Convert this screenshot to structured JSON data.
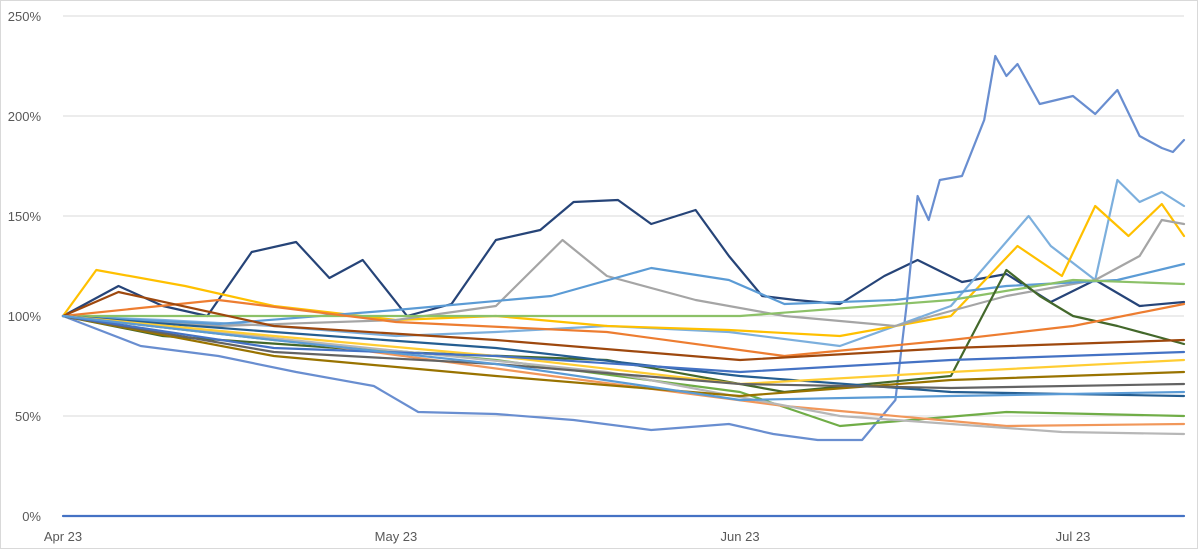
{
  "chart_data": {
    "type": "line",
    "title": "",
    "xlabel": "",
    "ylabel": "",
    "x_tick_labels": [
      "Apr 23",
      "May 23",
      "Jun 23",
      "Jul 23"
    ],
    "x_ticks": [
      "2023-04-01",
      "2023-05-01",
      "2023-06-01",
      "2023-07-01"
    ],
    "x_range": [
      "2023-04-01",
      "2023-07-11"
    ],
    "y_tick_labels": [
      "0%",
      "50%",
      "100%",
      "150%",
      "200%",
      "250%"
    ],
    "y_ticks": [
      0,
      50,
      100,
      150,
      200,
      250
    ],
    "ylim": [
      0,
      250
    ],
    "y_unit": "%",
    "grid": "horizontal",
    "legend": "none",
    "colors": [
      "#4472c4",
      "#ed7d31",
      "#a5a5a5",
      "#ffc000",
      "#5b9bd5",
      "#70ad47",
      "#264478",
      "#9e480e",
      "#636363",
      "#997300",
      "#255e91",
      "#43682b",
      "#698ed0",
      "#f1975a",
      "#b7b7b7",
      "#ffcd33",
      "#7cafdd",
      "#8cc168"
    ],
    "series": [
      {
        "color": "#4472c4",
        "values": [
          {
            "x": "2023-04-01",
            "y": 0
          },
          {
            "x": "2023-07-11",
            "y": 0
          }
        ]
      },
      {
        "color": "#264478",
        "values": [
          {
            "x": "2023-04-01",
            "y": 100
          },
          {
            "x": "2023-04-06",
            "y": 115
          },
          {
            "x": "2023-04-10",
            "y": 105
          },
          {
            "x": "2023-04-14",
            "y": 100
          },
          {
            "x": "2023-04-18",
            "y": 132
          },
          {
            "x": "2023-04-22",
            "y": 137
          },
          {
            "x": "2023-04-25",
            "y": 119
          },
          {
            "x": "2023-04-28",
            "y": 128
          },
          {
            "x": "2023-05-02",
            "y": 100
          },
          {
            "x": "2023-05-06",
            "y": 106
          },
          {
            "x": "2023-05-10",
            "y": 138
          },
          {
            "x": "2023-05-14",
            "y": 143
          },
          {
            "x": "2023-05-17",
            "y": 157
          },
          {
            "x": "2023-05-21",
            "y": 158
          },
          {
            "x": "2023-05-24",
            "y": 146
          },
          {
            "x": "2023-05-28",
            "y": 153
          },
          {
            "x": "2023-05-31",
            "y": 130
          },
          {
            "x": "2023-06-03",
            "y": 110
          },
          {
            "x": "2023-06-06",
            "y": 108
          },
          {
            "x": "2023-06-10",
            "y": 106
          },
          {
            "x": "2023-06-14",
            "y": 120
          },
          {
            "x": "2023-06-17",
            "y": 128
          },
          {
            "x": "2023-06-21",
            "y": 117
          },
          {
            "x": "2023-06-25",
            "y": 121
          },
          {
            "x": "2023-06-29",
            "y": 107
          },
          {
            "x": "2023-07-03",
            "y": 118
          },
          {
            "x": "2023-07-07",
            "y": 105
          },
          {
            "x": "2023-07-11",
            "y": 107
          }
        ]
      },
      {
        "color": "#698ed0",
        "values": [
          {
            "x": "2023-04-01",
            "y": 100
          },
          {
            "x": "2023-04-08",
            "y": 85
          },
          {
            "x": "2023-04-15",
            "y": 80
          },
          {
            "x": "2023-04-22",
            "y": 72
          },
          {
            "x": "2023-04-29",
            "y": 65
          },
          {
            "x": "2023-05-03",
            "y": 52
          },
          {
            "x": "2023-05-10",
            "y": 51
          },
          {
            "x": "2023-05-17",
            "y": 48
          },
          {
            "x": "2023-05-24",
            "y": 43
          },
          {
            "x": "2023-05-31",
            "y": 46
          },
          {
            "x": "2023-06-04",
            "y": 41
          },
          {
            "x": "2023-06-08",
            "y": 38
          },
          {
            "x": "2023-06-12",
            "y": 38
          },
          {
            "x": "2023-06-15",
            "y": 58
          },
          {
            "x": "2023-06-16",
            "y": 105
          },
          {
            "x": "2023-06-17",
            "y": 160
          },
          {
            "x": "2023-06-18",
            "y": 148
          },
          {
            "x": "2023-06-19",
            "y": 168
          },
          {
            "x": "2023-06-21",
            "y": 170
          },
          {
            "x": "2023-06-23",
            "y": 198
          },
          {
            "x": "2023-06-24",
            "y": 230
          },
          {
            "x": "2023-06-25",
            "y": 220
          },
          {
            "x": "2023-06-26",
            "y": 226
          },
          {
            "x": "2023-06-28",
            "y": 206
          },
          {
            "x": "2023-07-01",
            "y": 210
          },
          {
            "x": "2023-07-03",
            "y": 201
          },
          {
            "x": "2023-07-05",
            "y": 213
          },
          {
            "x": "2023-07-07",
            "y": 190
          },
          {
            "x": "2023-07-09",
            "y": 184
          },
          {
            "x": "2023-07-10",
            "y": 182
          },
          {
            "x": "2023-07-11",
            "y": 188
          }
        ]
      },
      {
        "color": "#7cafdd",
        "values": [
          {
            "x": "2023-04-01",
            "y": 100
          },
          {
            "x": "2023-04-10",
            "y": 98
          },
          {
            "x": "2023-04-20",
            "y": 95
          },
          {
            "x": "2023-05-01",
            "y": 90
          },
          {
            "x": "2023-05-10",
            "y": 92
          },
          {
            "x": "2023-05-20",
            "y": 95
          },
          {
            "x": "2023-05-31",
            "y": 92
          },
          {
            "x": "2023-06-10",
            "y": 85
          },
          {
            "x": "2023-06-20",
            "y": 105
          },
          {
            "x": "2023-06-27",
            "y": 150
          },
          {
            "x": "2023-06-29",
            "y": 135
          },
          {
            "x": "2023-07-03",
            "y": 118
          },
          {
            "x": "2023-07-05",
            "y": 168
          },
          {
            "x": "2023-07-07",
            "y": 157
          },
          {
            "x": "2023-07-09",
            "y": 162
          },
          {
            "x": "2023-07-11",
            "y": 155
          }
        ]
      },
      {
        "color": "#ffc000",
        "values": [
          {
            "x": "2023-04-01",
            "y": 100
          },
          {
            "x": "2023-04-04",
            "y": 123
          },
          {
            "x": "2023-04-12",
            "y": 115
          },
          {
            "x": "2023-04-20",
            "y": 105
          },
          {
            "x": "2023-05-01",
            "y": 98
          },
          {
            "x": "2023-05-10",
            "y": 100
          },
          {
            "x": "2023-05-20",
            "y": 95
          },
          {
            "x": "2023-05-31",
            "y": 93
          },
          {
            "x": "2023-06-10",
            "y": 90
          },
          {
            "x": "2023-06-20",
            "y": 100
          },
          {
            "x": "2023-06-26",
            "y": 135
          },
          {
            "x": "2023-06-30",
            "y": 120
          },
          {
            "x": "2023-07-03",
            "y": 155
          },
          {
            "x": "2023-07-06",
            "y": 140
          },
          {
            "x": "2023-07-09",
            "y": 156
          },
          {
            "x": "2023-07-11",
            "y": 140
          }
        ]
      },
      {
        "color": "#a5a5a5",
        "values": [
          {
            "x": "2023-04-01",
            "y": 100
          },
          {
            "x": "2023-04-15",
            "y": 95
          },
          {
            "x": "2023-05-01",
            "y": 98
          },
          {
            "x": "2023-05-10",
            "y": 105
          },
          {
            "x": "2023-05-16",
            "y": 138
          },
          {
            "x": "2023-05-20",
            "y": 120
          },
          {
            "x": "2023-05-28",
            "y": 108
          },
          {
            "x": "2023-06-05",
            "y": 100
          },
          {
            "x": "2023-06-15",
            "y": 95
          },
          {
            "x": "2023-06-25",
            "y": 110
          },
          {
            "x": "2023-07-03",
            "y": 118
          },
          {
            "x": "2023-07-07",
            "y": 130
          },
          {
            "x": "2023-07-09",
            "y": 148
          },
          {
            "x": "2023-07-11",
            "y": 146
          }
        ]
      },
      {
        "color": "#5b9bd5",
        "values": [
          {
            "x": "2023-04-01",
            "y": 100
          },
          {
            "x": "2023-04-15",
            "y": 96
          },
          {
            "x": "2023-05-01",
            "y": 103
          },
          {
            "x": "2023-05-15",
            "y": 110
          },
          {
            "x": "2023-05-24",
            "y": 124
          },
          {
            "x": "2023-05-31",
            "y": 118
          },
          {
            "x": "2023-06-05",
            "y": 106
          },
          {
            "x": "2023-06-15",
            "y": 108
          },
          {
            "x": "2023-06-25",
            "y": 115
          },
          {
            "x": "2023-07-05",
            "y": 118
          },
          {
            "x": "2023-07-11",
            "y": 126
          }
        ]
      },
      {
        "color": "#8cc168",
        "values": [
          {
            "x": "2023-04-01",
            "y": 100
          },
          {
            "x": "2023-05-01",
            "y": 100
          },
          {
            "x": "2023-06-01",
            "y": 100
          },
          {
            "x": "2023-06-20",
            "y": 108
          },
          {
            "x": "2023-07-01",
            "y": 118
          },
          {
            "x": "2023-07-11",
            "y": 116
          }
        ]
      },
      {
        "color": "#43682b",
        "values": [
          {
            "x": "2023-04-01",
            "y": 100
          },
          {
            "x": "2023-04-10",
            "y": 90
          },
          {
            "x": "2023-05-01",
            "y": 82
          },
          {
            "x": "2023-05-20",
            "y": 78
          },
          {
            "x": "2023-06-05",
            "y": 62
          },
          {
            "x": "2023-06-20",
            "y": 70
          },
          {
            "x": "2023-06-25",
            "y": 123
          },
          {
            "x": "2023-06-28",
            "y": 110
          },
          {
            "x": "2023-07-01",
            "y": 100
          },
          {
            "x": "2023-07-05",
            "y": 95
          },
          {
            "x": "2023-07-11",
            "y": 86
          }
        ]
      },
      {
        "color": "#ed7d31",
        "values": [
          {
            "x": "2023-04-01",
            "y": 100
          },
          {
            "x": "2023-04-15",
            "y": 108
          },
          {
            "x": "2023-05-01",
            "y": 97
          },
          {
            "x": "2023-05-20",
            "y": 92
          },
          {
            "x": "2023-06-05",
            "y": 80
          },
          {
            "x": "2023-06-20",
            "y": 88
          },
          {
            "x": "2023-07-01",
            "y": 95
          },
          {
            "x": "2023-07-11",
            "y": 106
          }
        ]
      },
      {
        "color": "#9e480e",
        "values": [
          {
            "x": "2023-04-01",
            "y": 100
          },
          {
            "x": "2023-04-06",
            "y": 112
          },
          {
            "x": "2023-04-20",
            "y": 95
          },
          {
            "x": "2023-05-10",
            "y": 88
          },
          {
            "x": "2023-06-01",
            "y": 78
          },
          {
            "x": "2023-06-20",
            "y": 84
          },
          {
            "x": "2023-07-11",
            "y": 88
          }
        ]
      },
      {
        "color": "#70ad47",
        "values": [
          {
            "x": "2023-04-01",
            "y": 100
          },
          {
            "x": "2023-04-20",
            "y": 88
          },
          {
            "x": "2023-05-10",
            "y": 78
          },
          {
            "x": "2023-06-01",
            "y": 62
          },
          {
            "x": "2023-06-10",
            "y": 45
          },
          {
            "x": "2023-06-25",
            "y": 52
          },
          {
            "x": "2023-07-11",
            "y": 50
          }
        ]
      },
      {
        "color": "#255e91",
        "values": [
          {
            "x": "2023-04-01",
            "y": 100
          },
          {
            "x": "2023-04-20",
            "y": 92
          },
          {
            "x": "2023-05-10",
            "y": 84
          },
          {
            "x": "2023-06-01",
            "y": 70
          },
          {
            "x": "2023-06-20",
            "y": 62
          },
          {
            "x": "2023-07-11",
            "y": 60
          }
        ]
      },
      {
        "color": "#f1975a",
        "values": [
          {
            "x": "2023-04-01",
            "y": 100
          },
          {
            "x": "2023-04-25",
            "y": 85
          },
          {
            "x": "2023-05-15",
            "y": 70
          },
          {
            "x": "2023-06-05",
            "y": 55
          },
          {
            "x": "2023-06-25",
            "y": 45
          },
          {
            "x": "2023-07-11",
            "y": 46
          }
        ]
      },
      {
        "color": "#b7b7b7",
        "values": [
          {
            "x": "2023-04-01",
            "y": 100
          },
          {
            "x": "2023-04-25",
            "y": 86
          },
          {
            "x": "2023-05-20",
            "y": 72
          },
          {
            "x": "2023-06-10",
            "y": 50
          },
          {
            "x": "2023-06-30",
            "y": 42
          },
          {
            "x": "2023-07-11",
            "y": 41
          }
        ]
      },
      {
        "color": "#997300",
        "values": [
          {
            "x": "2023-04-01",
            "y": 100
          },
          {
            "x": "2023-04-20",
            "y": 80
          },
          {
            "x": "2023-05-10",
            "y": 70
          },
          {
            "x": "2023-06-01",
            "y": 60
          },
          {
            "x": "2023-06-20",
            "y": 68
          },
          {
            "x": "2023-07-11",
            "y": 72
          }
        ]
      },
      {
        "color": "#ffcd33",
        "values": [
          {
            "x": "2023-04-01",
            "y": 100
          },
          {
            "x": "2023-04-20",
            "y": 90
          },
          {
            "x": "2023-05-10",
            "y": 80
          },
          {
            "x": "2023-06-01",
            "y": 66
          },
          {
            "x": "2023-06-20",
            "y": 72
          },
          {
            "x": "2023-07-11",
            "y": 78
          }
        ]
      },
      {
        "color": "#636363",
        "values": [
          {
            "x": "2023-04-01",
            "y": 100
          },
          {
            "x": "2023-04-20",
            "y": 82
          },
          {
            "x": "2023-05-10",
            "y": 76
          },
          {
            "x": "2023-06-01",
            "y": 66
          },
          {
            "x": "2023-06-20",
            "y": 64
          },
          {
            "x": "2023-07-11",
            "y": 66
          }
        ]
      },
      {
        "color": "#4472c4",
        "values": [
          {
            "x": "2023-04-01",
            "y": 100
          },
          {
            "x": "2023-04-20",
            "y": 84
          },
          {
            "x": "2023-05-10",
            "y": 80
          },
          {
            "x": "2023-06-01",
            "y": 72
          },
          {
            "x": "2023-06-20",
            "y": 78
          },
          {
            "x": "2023-07-11",
            "y": 82
          }
        ]
      },
      {
        "color": "#5b9bd5",
        "values": [
          {
            "x": "2023-04-01",
            "y": 100
          },
          {
            "x": "2023-04-20",
            "y": 88
          },
          {
            "x": "2023-05-10",
            "y": 76
          },
          {
            "x": "2023-06-01",
            "y": 58
          },
          {
            "x": "2023-06-20",
            "y": 60
          },
          {
            "x": "2023-07-11",
            "y": 62
          }
        ]
      }
    ]
  }
}
